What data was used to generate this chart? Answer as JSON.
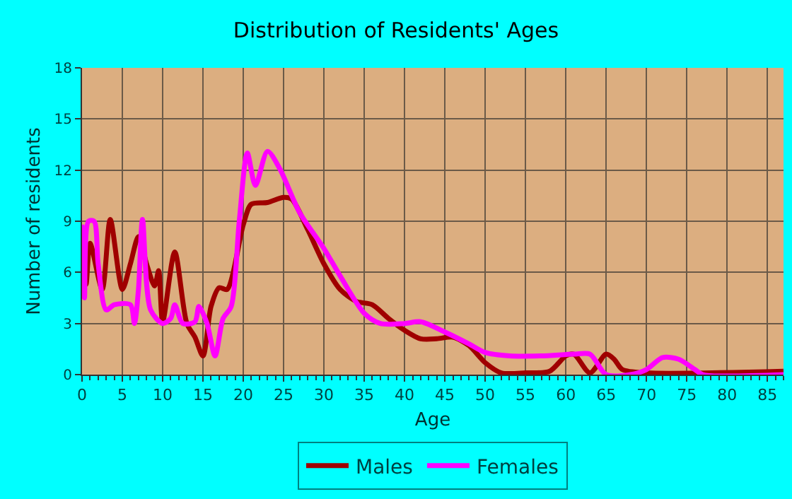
{
  "chart_data": {
    "type": "line",
    "title": "Distribution of Residents' Ages",
    "xlabel": "Age",
    "ylabel": "Number of residents",
    "xlim": [
      0,
      87
    ],
    "xticks": [
      0,
      5,
      10,
      15,
      20,
      25,
      30,
      35,
      40,
      45,
      50,
      55,
      60,
      65,
      70,
      75,
      80,
      85
    ],
    "ylim": [
      0,
      18
    ],
    "yticks": [
      0,
      3,
      6,
      9,
      12,
      15,
      18
    ],
    "grid": true,
    "legend": "bottom",
    "marker": "none",
    "line_style": "solid",
    "series": [
      {
        "name": "Males",
        "color": "#a00000",
        "x": [
          0,
          0.5,
          1,
          2.5,
          3.5,
          5,
          6,
          7,
          8,
          9,
          9.5,
          10,
          11.5,
          13,
          14,
          15,
          16,
          17,
          18,
          20,
          21,
          23,
          25,
          26,
          28,
          30,
          32,
          34,
          36,
          38,
          40,
          42,
          44,
          46,
          48,
          50,
          52,
          55,
          58,
          60,
          61,
          63,
          65,
          66,
          67,
          70,
          87
        ],
        "values": [
          8.2,
          5.3,
          7.7,
          5,
          9.1,
          5,
          6.5,
          8.1,
          6.5,
          5.2,
          6.1,
          3.1,
          7.2,
          3,
          2.2,
          1.1,
          4,
          5.1,
          5,
          8.8,
          10,
          10.1,
          10.4,
          10.3,
          8.5,
          6.5,
          5,
          4.3,
          4.1,
          3.3,
          2.6,
          2.1,
          2.1,
          2.2,
          1.7,
          0.7,
          0.1,
          0.1,
          0.2,
          1.1,
          1.2,
          0.1,
          1.2,
          0.9,
          0.3,
          0.1,
          0.2
        ]
      },
      {
        "name": "Females",
        "color": "#ff00ff",
        "x": [
          0,
          0.3,
          0.8,
          1.5,
          2,
          3,
          4,
          6,
          6.5,
          7,
          7.5,
          8.5,
          10,
          11,
          11.5,
          12.5,
          14,
          14.5,
          15.5,
          16.5,
          17.5,
          18.5,
          19.5,
          20.5,
          21.5,
          23,
          24.5,
          27,
          30,
          32,
          35,
          37,
          40,
          42,
          45,
          48,
          50,
          53,
          57,
          61,
          63,
          65,
          68,
          70,
          72,
          74,
          76,
          77,
          87
        ],
        "values": [
          8.8,
          4.5,
          9,
          9,
          6.5,
          3.8,
          4.1,
          4.1,
          3,
          5,
          9.1,
          3.8,
          3,
          3.3,
          4.1,
          3,
          3.1,
          4,
          3,
          1.1,
          3.3,
          4,
          9,
          13,
          11.1,
          13.1,
          12.1,
          9.5,
          7.4,
          5.8,
          3.6,
          3,
          3,
          3.1,
          2.5,
          1.8,
          1.3,
          1.1,
          1.1,
          1.2,
          1.2,
          0,
          0,
          0.3,
          1,
          0.9,
          0.3,
          0,
          0
        ]
      }
    ]
  }
}
